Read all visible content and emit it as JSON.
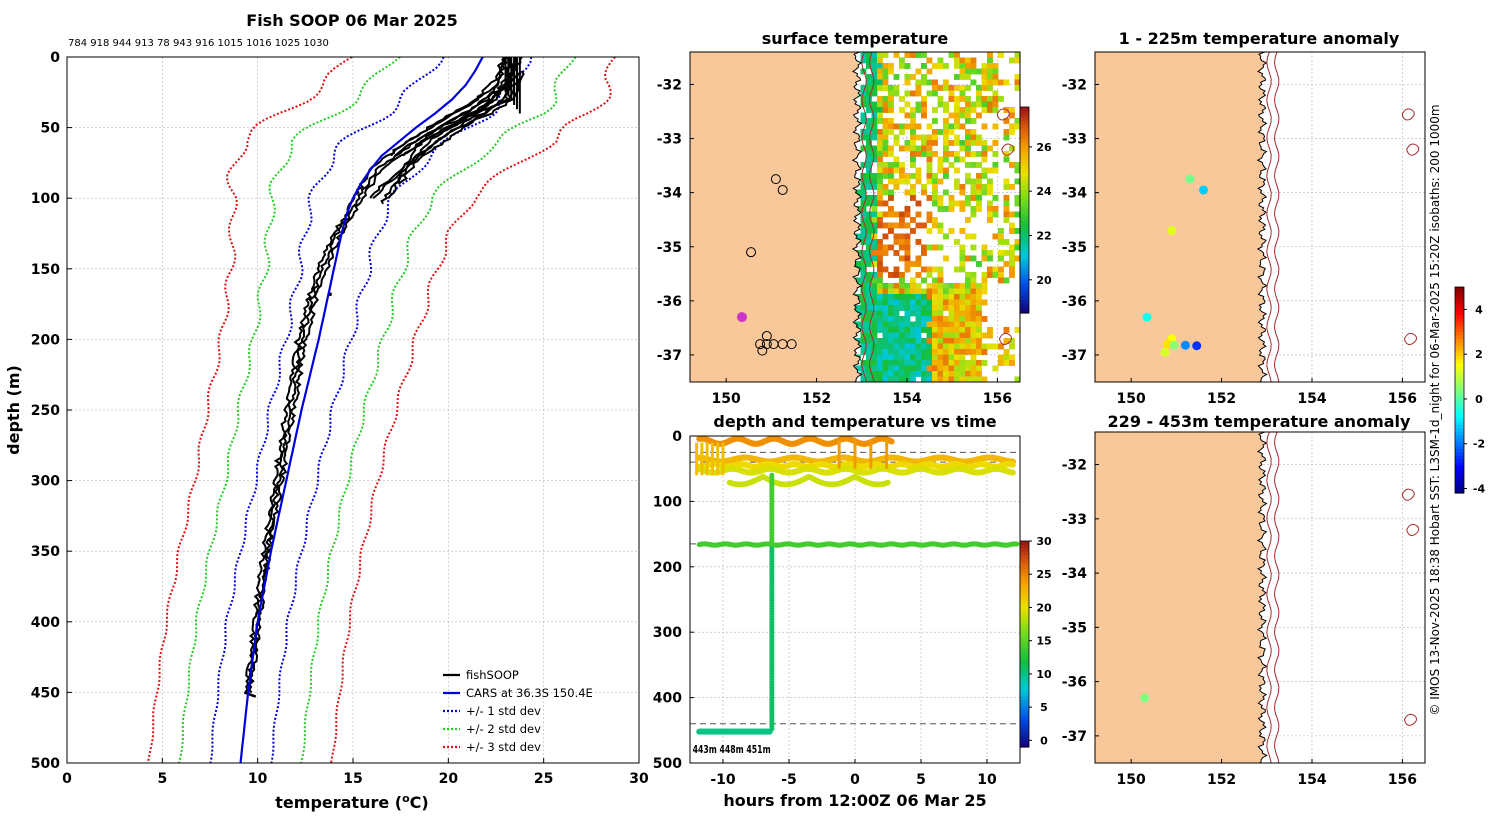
{
  "figure": {
    "side_text": "© IMOS 13-Nov-2025 18:38 Hobart SST: L3SM-1d_night for 06-Mar-2025 15:20Z isobaths: 200  1000m"
  },
  "chart_data": [
    {
      "id": "profile",
      "type": "line",
      "title": "Fish SOOP 06 Mar 2025",
      "subtitle": "784 918 944 913 78 943 916 1015 1016 1025 1030",
      "xlabel": "temperature (",
      "xlabel_sup": "o",
      "xlabel_end": "C)",
      "ylabel": "depth (m)",
      "xlim": [
        0,
        30
      ],
      "ylim": [
        500,
        0
      ],
      "xticks": [
        0,
        5,
        10,
        15,
        20,
        25,
        30
      ],
      "yticks": [
        0,
        50,
        100,
        150,
        200,
        250,
        300,
        350,
        400,
        450,
        500
      ],
      "legend": [
        "fishSOOP",
        "CARS at 36.3S 150.4E",
        "+/- 1 std dev",
        "+/- 2 std dev",
        "+/- 3 std dev"
      ],
      "colors": {
        "fish": "#000000",
        "cars": "#0000dd",
        "std1": "#0000dd",
        "std2": "#22cc22",
        "std3": "#dd1111"
      },
      "cars": {
        "depth": [
          0,
          10,
          20,
          30,
          40,
          50,
          60,
          70,
          80,
          90,
          100,
          110,
          125,
          150,
          175,
          200,
          250,
          300,
          350,
          400,
          450,
          500
        ],
        "temp": [
          21.8,
          21.4,
          20.9,
          20.2,
          19.3,
          18.3,
          17.4,
          16.5,
          15.9,
          15.4,
          15.0,
          14.7,
          14.4,
          14.0,
          13.6,
          13.2,
          12.3,
          11.5,
          10.7,
          10.0,
          9.5,
          9.1
        ]
      },
      "std_offsets": {
        "depth": [
          0,
          20,
          40,
          60,
          80,
          100,
          125,
          150,
          200,
          250,
          300,
          400,
          500
        ],
        "one": [
          2.3,
          2.5,
          2.7,
          2.7,
          2.4,
          2.1,
          1.9,
          1.8,
          1.7,
          1.65,
          1.6,
          1.6,
          1.6
        ],
        "wig": [
          0.3,
          0.4,
          0.5,
          0.4,
          0.3,
          0.25,
          0.2,
          0.2,
          0.15,
          0.12,
          0.1,
          0.08,
          0.05
        ]
      },
      "fish_profiles": [
        {
          "depth": [
            0,
            20,
            40,
            60,
            80,
            100,
            130,
            160,
            200,
            250,
            300,
            350,
            400,
            450
          ],
          "temp": [
            23.2,
            23.0,
            20.8,
            18.2,
            16.2,
            15.3,
            14.0,
            13.1,
            12.3,
            11.7,
            11.1,
            10.5,
            10.0,
            9.5
          ]
        },
        {
          "depth": [
            0,
            20,
            40,
            60,
            80,
            100,
            130,
            160,
            200,
            250,
            300,
            350,
            400,
            450
          ],
          "temp": [
            23.5,
            23.2,
            21.2,
            18.6,
            16.5,
            15.5,
            14.2,
            13.3,
            12.5,
            11.9,
            11.3,
            10.6,
            10.1,
            9.6
          ]
        },
        {
          "depth": [
            0,
            20,
            40,
            60,
            80,
            100,
            130,
            160,
            200,
            250,
            300,
            350,
            400,
            450
          ],
          "temp": [
            23.0,
            22.6,
            20.2,
            17.8,
            15.9,
            15.1,
            13.8,
            12.9,
            12.1,
            11.5,
            10.9,
            10.3,
            9.8,
            9.4
          ]
        },
        {
          "depth": [
            0,
            15,
            30,
            45,
            60,
            75,
            90,
            100
          ],
          "temp": [
            23.8,
            23.3,
            22.8,
            21.4,
            19.8,
            18.2,
            16.8,
            16.1
          ]
        },
        {
          "depth": [
            0,
            15,
            30,
            45,
            60,
            75,
            90,
            100
          ],
          "temp": [
            23.3,
            23.0,
            22.4,
            21.0,
            19.4,
            17.9,
            16.6,
            16.0
          ]
        },
        {
          "depth": [
            0,
            15,
            30,
            45,
            60,
            70
          ],
          "temp": [
            23.1,
            22.7,
            22.1,
            20.2,
            18.2,
            17.3
          ]
        },
        {
          "depth": [
            0,
            15,
            30,
            45,
            60,
            70
          ],
          "temp": [
            23.6,
            23.2,
            22.5,
            20.8,
            18.6,
            17.6
          ]
        },
        {
          "depth": [
            0,
            15,
            30,
            45,
            60,
            70
          ],
          "temp": [
            22.9,
            22.5,
            21.5,
            19.8,
            17.8,
            17.0
          ]
        },
        {
          "depth": [
            10,
            20,
            30,
            40,
            50,
            60,
            70,
            80,
            90,
            100,
            105
          ],
          "temp": [
            23.4,
            23.2,
            23.0,
            21.4,
            19.5,
            18.6,
            18.0,
            17.6,
            17.2,
            16.7,
            16.4
          ]
        },
        {
          "depth": [
            10,
            20,
            30,
            40,
            50,
            60,
            70,
            80,
            90,
            100
          ],
          "temp": [
            23.7,
            23.5,
            23.2,
            21.8,
            20.0,
            19.0,
            18.3,
            17.8,
            17.3,
            16.9
          ]
        },
        {
          "depth": [
            10,
            20,
            30,
            40,
            50,
            60,
            70,
            80,
            90
          ],
          "temp": [
            23.9,
            23.7,
            23.4,
            22.2,
            20.5,
            19.3,
            18.5,
            18.0,
            17.5
          ]
        }
      ]
    },
    {
      "id": "surface",
      "type": "heatmap",
      "title": "surface temperature",
      "xlim": [
        149.2,
        156.5
      ],
      "ylim": [
        -37.5,
        -31.4
      ],
      "xticks": [
        150,
        152,
        154,
        156
      ],
      "yticks": [
        -32,
        -33,
        -34,
        -35,
        -36,
        -37
      ],
      "colorbar": {
        "range": [
          18.5,
          27.8
        ],
        "ticks": [
          20,
          22,
          24,
          26
        ]
      }
    },
    {
      "id": "timeseries",
      "type": "scatter",
      "title": "depth and temperature vs time",
      "xlabel": "hours from 12:00Z 06 Mar 25",
      "xlim": [
        -12.5,
        12.5
      ],
      "ylim": [
        500,
        0
      ],
      "xticks": [
        -10,
        -5,
        0,
        5,
        10
      ],
      "yticks": [
        0,
        100,
        200,
        300,
        400,
        500
      ],
      "colorbar": {
        "range": [
          -1,
          30
        ],
        "ticks": [
          0,
          5,
          10,
          15,
          20,
          25,
          30
        ]
      },
      "reference_depths": [
        25,
        40,
        165,
        440
      ],
      "overlap_label": "443m 448m 451m"
    },
    {
      "id": "anomaly_upper",
      "type": "scatter",
      "title": "1 - 225m temperature anomaly",
      "xlim": [
        149.2,
        156.5
      ],
      "ylim": [
        -37.5,
        -31.4
      ],
      "xticks": [
        150,
        152,
        154,
        156
      ],
      "yticks": [
        -32,
        -33,
        -34,
        -35,
        -36,
        -37
      ],
      "colorbar": {
        "range": [
          -4.2,
          5.0
        ],
        "ticks": [
          -4,
          -2,
          0,
          2,
          4
        ]
      },
      "points": [
        {
          "lon": 151.3,
          "lat": -33.75,
          "anom": 0.3
        },
        {
          "lon": 151.6,
          "lat": -33.95,
          "anom": -1.2
        },
        {
          "lon": 150.9,
          "lat": -34.7,
          "anom": 1.3
        },
        {
          "lon": 150.35,
          "lat": -36.3,
          "anom": -0.6
        },
        {
          "lon": 150.9,
          "lat": -36.7,
          "anom": 1.5
        },
        {
          "lon": 150.8,
          "lat": -36.8,
          "anom": 1.8
        },
        {
          "lon": 150.95,
          "lat": -36.82,
          "anom": 0.5
        },
        {
          "lon": 151.2,
          "lat": -36.82,
          "anom": -1.8
        },
        {
          "lon": 151.45,
          "lat": -36.83,
          "anom": -2.6
        },
        {
          "lon": 150.75,
          "lat": -36.95,
          "anom": 1.2
        }
      ]
    },
    {
      "id": "anomaly_lower",
      "type": "scatter",
      "title": "229 - 453m temperature anomaly",
      "xlim": [
        149.2,
        156.5
      ],
      "ylim": [
        -37.5,
        -31.4
      ],
      "xticks": [
        150,
        152,
        154,
        156
      ],
      "yticks": [
        -32,
        -33,
        -34,
        -35,
        -36,
        -37
      ],
      "points": [
        {
          "lon": 150.3,
          "lat": -36.3,
          "anom": 0.4
        }
      ]
    }
  ]
}
